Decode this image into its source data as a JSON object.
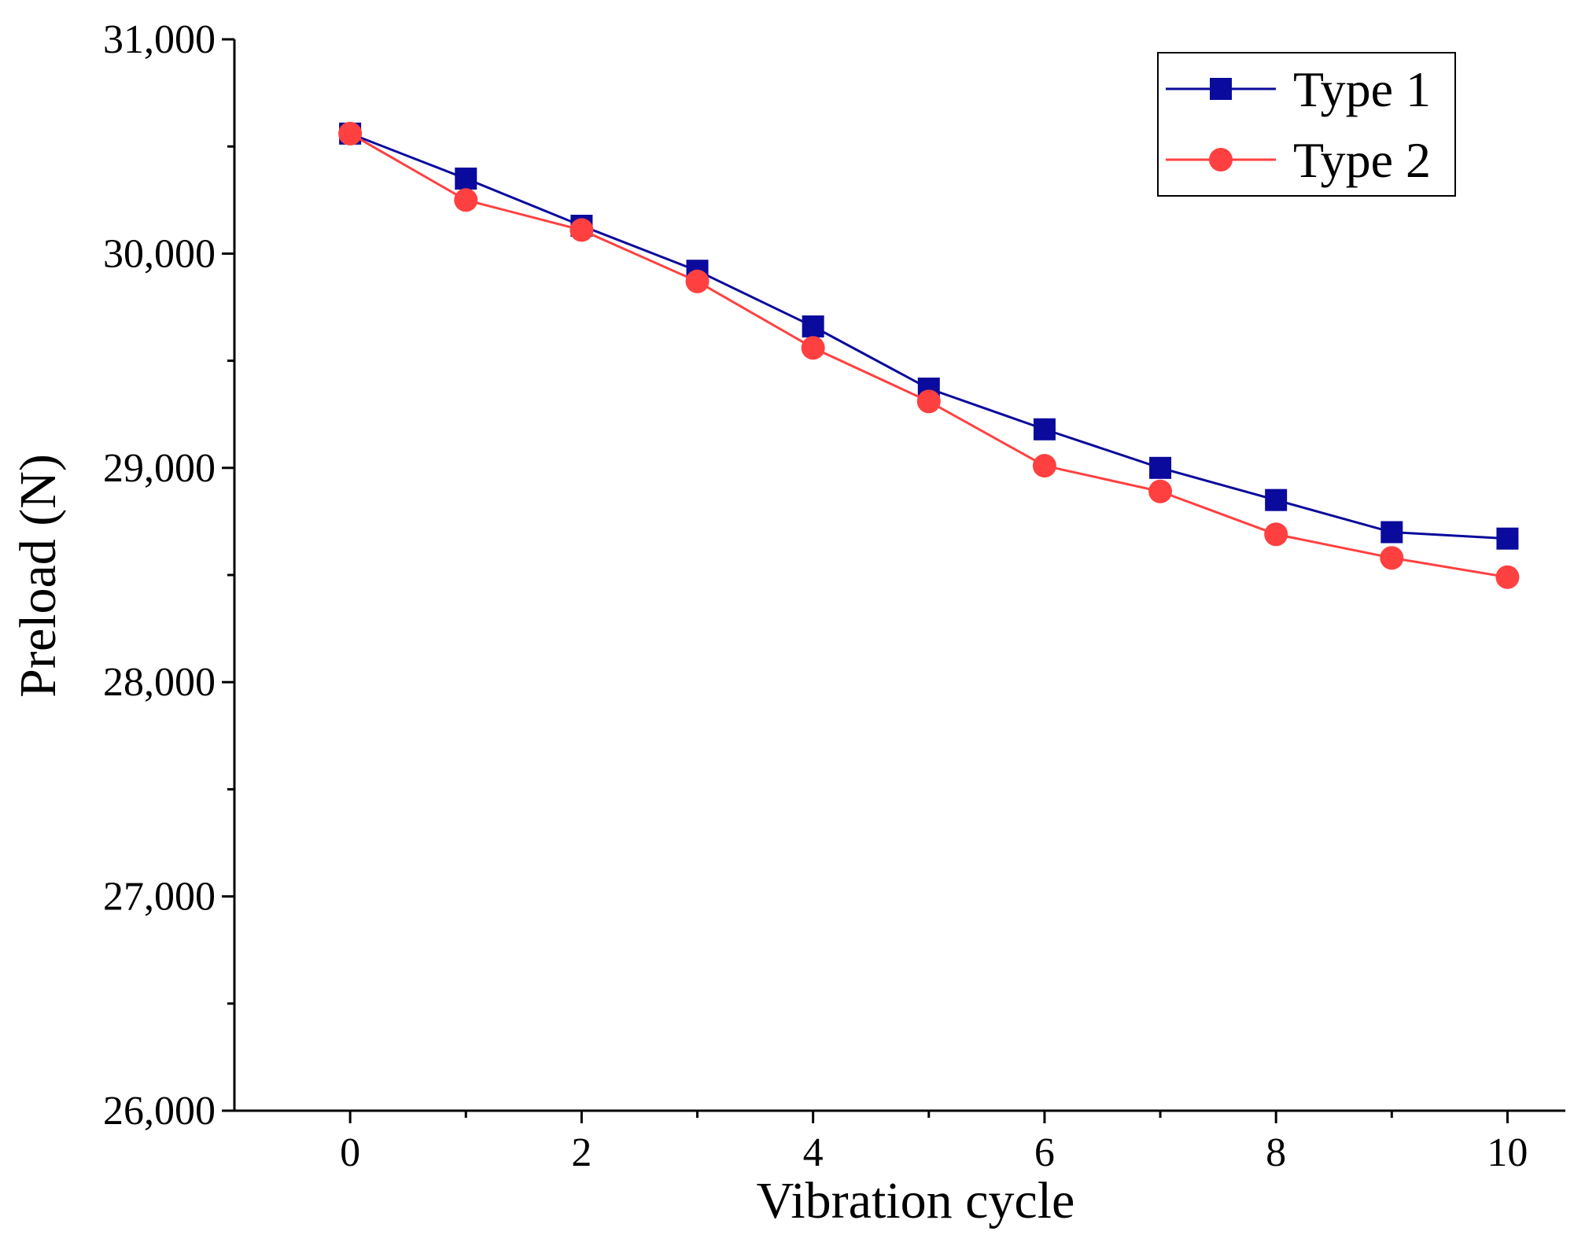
{
  "chart_data": {
    "type": "line",
    "title": "",
    "xlabel": "Vibration cycle",
    "ylabel": "Preload (N)",
    "xlim": [
      -1,
      10.5
    ],
    "ylim": [
      26000,
      31000
    ],
    "x_ticks": [
      0,
      2,
      4,
      6,
      8,
      10
    ],
    "x_tick_labels": [
      "0",
      "2",
      "4",
      "6",
      "8",
      "10"
    ],
    "y_ticks": [
      26000,
      27000,
      28000,
      29000,
      30000,
      31000
    ],
    "y_tick_labels": [
      "26,000",
      "27,000",
      "28,000",
      "29,000",
      "30,000",
      "31,000"
    ],
    "grid": false,
    "legend_position": "top-right",
    "x": [
      0,
      1,
      2,
      3,
      4,
      5,
      6,
      7,
      8,
      9,
      10
    ],
    "series": [
      {
        "name": "Type 1",
        "marker": "square",
        "color": "#0a0a9c",
        "values": [
          30560,
          30350,
          30130,
          29920,
          29660,
          29370,
          29180,
          29000,
          28850,
          28700,
          28670
        ]
      },
      {
        "name": "Type 2",
        "marker": "circle",
        "color": "#ff4040",
        "values": [
          30560,
          30250,
          30110,
          29870,
          29560,
          29310,
          29010,
          28890,
          28690,
          28580,
          28490
        ]
      }
    ]
  }
}
